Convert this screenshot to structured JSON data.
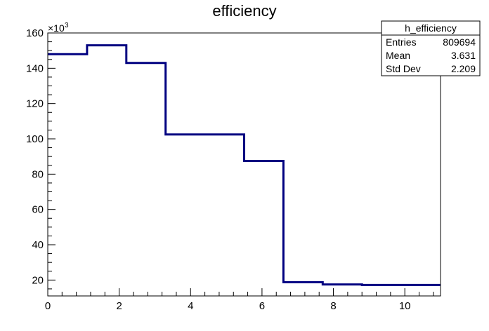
{
  "chart_data": {
    "type": "step-histogram",
    "title": "efficiency",
    "xlabel": "",
    "ylabel": "",
    "y_multiplier_label": "×10",
    "y_multiplier_exponent": "3",
    "xlim": [
      0,
      11
    ],
    "ylim": [
      11,
      160
    ],
    "x_ticks": [
      0,
      2,
      4,
      6,
      8,
      10
    ],
    "x_tick_labels": [
      "0",
      "2",
      "4",
      "6",
      "8",
      "10"
    ],
    "y_ticks": [
      20,
      40,
      60,
      80,
      100,
      120,
      140,
      160
    ],
    "y_tick_labels": [
      "20",
      "40",
      "60",
      "80",
      "100",
      "120",
      "140",
      "160"
    ],
    "bin_edges": [
      0,
      1.1,
      2.2,
      3.3,
      4.4,
      5.5,
      6.6,
      7.7,
      8.8,
      9.9,
      11
    ],
    "values": [
      148,
      153,
      143,
      102.5,
      102.5,
      87.5,
      18.8,
      17.5,
      17.2,
      17.2
    ],
    "line_color": "#000080",
    "grid": false,
    "stats_box": {
      "title": "h_efficiency",
      "rows": [
        {
          "label": "Entries",
          "value": "809694"
        },
        {
          "label": "Mean",
          "value": "3.631"
        },
        {
          "label": "Std Dev",
          "value": "2.209"
        }
      ]
    }
  }
}
